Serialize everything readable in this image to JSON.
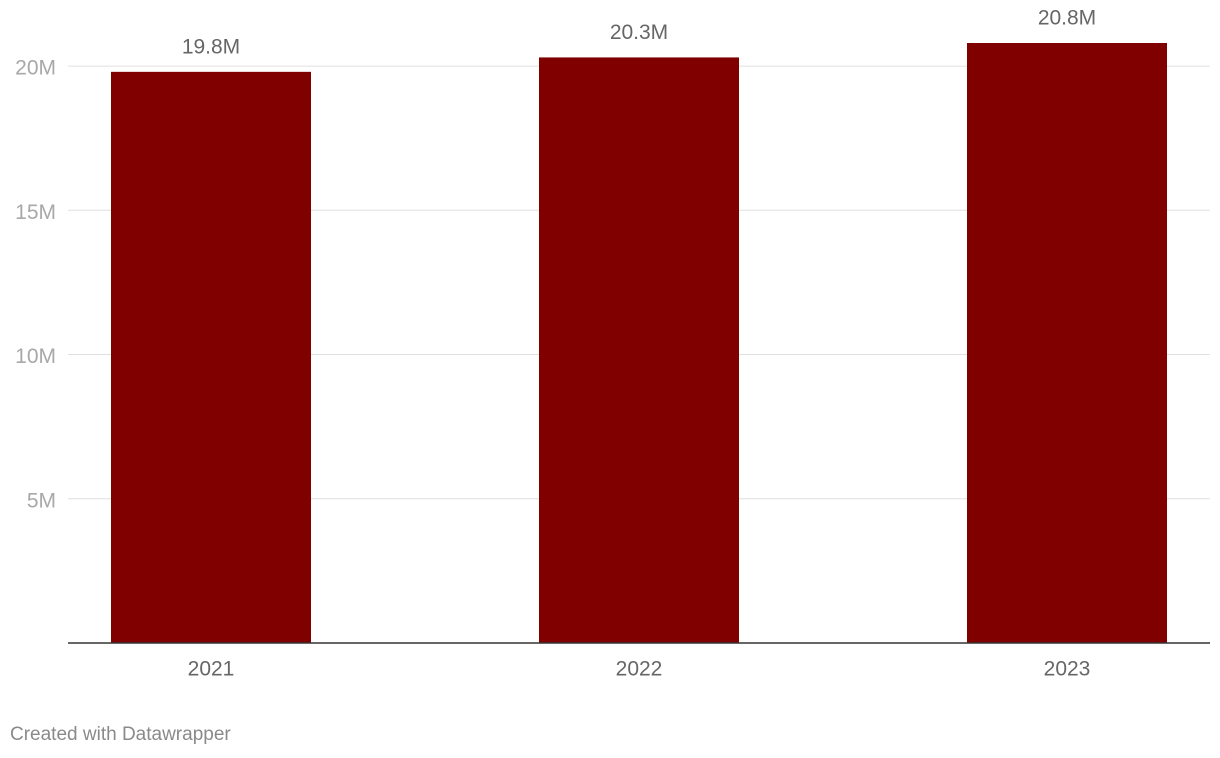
{
  "chart_data": {
    "type": "bar",
    "categories": [
      "2021",
      "2022",
      "2023"
    ],
    "values": [
      19800000,
      20300000,
      20800000
    ],
    "value_labels": [
      "19.8M",
      "20.3M",
      "20.8M"
    ],
    "color": "#800000",
    "ylim": [
      0,
      20800000
    ],
    "yticks": [
      {
        "value": 5000000,
        "label": "5M"
      },
      {
        "value": 10000000,
        "label": "10M"
      },
      {
        "value": 15000000,
        "label": "15M"
      },
      {
        "value": 20000000,
        "label": "20M"
      }
    ],
    "grid": true,
    "credit": "Created with Datawrapper"
  }
}
